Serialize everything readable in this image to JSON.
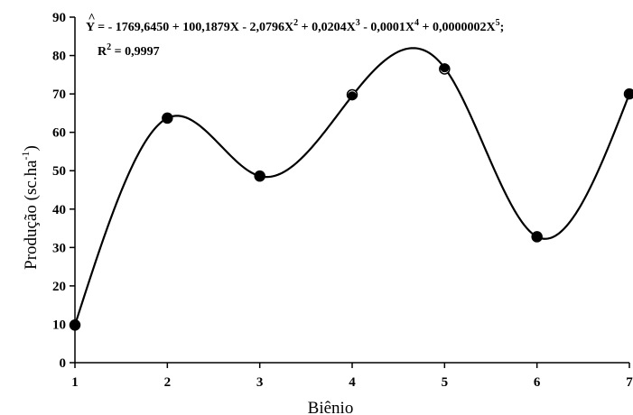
{
  "chart_data": {
    "type": "scatter",
    "xlabel": "Biênio",
    "ylabel_main": "Produção (sc.ha",
    "ylabel_sup": "-1",
    "ylabel_close": ")",
    "xlim": [
      1,
      7
    ],
    "ylim": [
      0,
      90
    ],
    "xticks": [
      "1",
      "2",
      "3",
      "4",
      "5",
      "6",
      "7"
    ],
    "yticks": [
      "0",
      "10",
      "20",
      "30",
      "40",
      "50",
      "60",
      "70",
      "80",
      "90"
    ],
    "grid": false,
    "x": [
      1,
      2,
      3,
      4,
      5,
      6,
      7
    ],
    "observed": [
      9.8,
      63.7,
      48.6,
      69.8,
      76.5,
      32.8,
      70.0
    ],
    "fitted": [
      9.8,
      63.7,
      48.6,
      69.5,
      76.8,
      32.8,
      70.0
    ],
    "fit_coefficients": [
      -1769.645,
      100.1879,
      -2.0796,
      0.0204,
      -0.0001,
      2e-07
    ],
    "equation": {
      "yhat": "Y",
      "hat": "^",
      "lhs": " = ",
      "t0": " - 1769,6450 + 100,1879X - 2,0796X",
      "s1": "2",
      "t1": " + 0,0204X",
      "s2": "3",
      "t2": " - 0,0001X",
      "s3": "4",
      "t3": " + 0,0000002X",
      "s4": "5",
      "t4": ";",
      "r2_label": "R",
      "r2_sup": "2",
      "r2_value": " = 0,9997"
    }
  }
}
